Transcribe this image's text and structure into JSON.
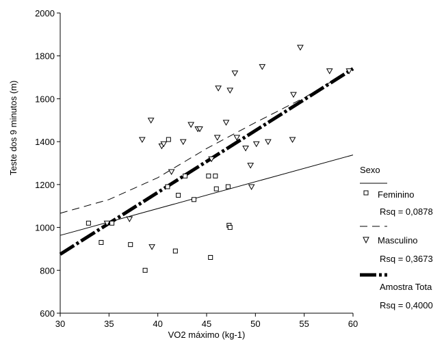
{
  "chart_data": {
    "type": "scatter",
    "title": "",
    "xlabel": "VO2 máximo (kg-1)",
    "ylabel": "Teste dos 9 minutos (m)",
    "xlim": [
      30,
      60
    ],
    "ylim": [
      600,
      2000
    ],
    "xticks": [
      "30",
      "35",
      "40",
      "45",
      "50",
      "55",
      "60"
    ],
    "yticks": [
      "600",
      "800",
      "1000",
      "1200",
      "1400",
      "1600",
      "1800",
      "2000"
    ],
    "grid": false,
    "legend": {
      "title": "Sexo",
      "placement": "right",
      "entries": [
        {
          "label": "Feminino",
          "rsq": "Rsq = 0,0878",
          "marker": "square",
          "line": "solid"
        },
        {
          "label": "Masculino",
          "rsq": "Rsq = 0,3673",
          "marker": "triangle-down",
          "line": "dashed"
        },
        {
          "label": "Amostra Tota",
          "rsq": "Rsq = 0,4000",
          "marker": "none",
          "line": "thick-dashdot"
        }
      ]
    },
    "series": [
      {
        "name": "Feminino",
        "marker": "square",
        "points": [
          [
            32.9,
            1020
          ],
          [
            34.2,
            930
          ],
          [
            35.3,
            1020
          ],
          [
            37.2,
            920
          ],
          [
            38.7,
            800
          ],
          [
            41.0,
            1190
          ],
          [
            41.1,
            1410
          ],
          [
            41.8,
            890
          ],
          [
            42.1,
            1150
          ],
          [
            42.8,
            1240
          ],
          [
            43.7,
            1130
          ],
          [
            45.2,
            1240
          ],
          [
            45.4,
            860
          ],
          [
            45.9,
            1240
          ],
          [
            46.0,
            1180
          ],
          [
            47.2,
            1190
          ],
          [
            47.3,
            1010
          ],
          [
            47.4,
            1000
          ]
        ]
      },
      {
        "name": "Masculino",
        "marker": "triangle-down",
        "points": [
          [
            34.8,
            1020
          ],
          [
            37.1,
            1040
          ],
          [
            38.4,
            1410
          ],
          [
            39.3,
            1500
          ],
          [
            39.4,
            910
          ],
          [
            40.4,
            1380
          ],
          [
            40.6,
            1390
          ],
          [
            41.4,
            1260
          ],
          [
            42.6,
            1400
          ],
          [
            43.4,
            1480
          ],
          [
            44.1,
            1460
          ],
          [
            44.3,
            1460
          ],
          [
            45.5,
            1320
          ],
          [
            46.1,
            1420
          ],
          [
            46.2,
            1650
          ],
          [
            47.0,
            1490
          ],
          [
            47.4,
            1640
          ],
          [
            47.9,
            1720
          ],
          [
            48.1,
            1420
          ],
          [
            49.0,
            1370
          ],
          [
            49.5,
            1290
          ],
          [
            49.6,
            1190
          ],
          [
            50.1,
            1390
          ],
          [
            50.7,
            1750
          ],
          [
            51.3,
            1400
          ],
          [
            53.8,
            1410
          ],
          [
            53.9,
            1620
          ],
          [
            54.6,
            1840
          ],
          [
            57.6,
            1730
          ],
          [
            59.6,
            1730
          ]
        ]
      }
    ],
    "fit_lines": [
      {
        "name": "Feminino",
        "style": "solid",
        "x": [
          30,
          60
        ],
        "y": [
          963,
          1338
        ]
      },
      {
        "name": "Masculino",
        "style": "dashed",
        "x": [
          30,
          35,
          40,
          45,
          50,
          55,
          60
        ],
        "y": [
          1066,
          1130,
          1232,
          1368,
          1489,
          1605,
          1740
        ]
      },
      {
        "name": "Amostra Tota",
        "style": "thick-dashdot",
        "x": [
          30,
          60
        ],
        "y": [
          875,
          1740
        ]
      }
    ]
  }
}
